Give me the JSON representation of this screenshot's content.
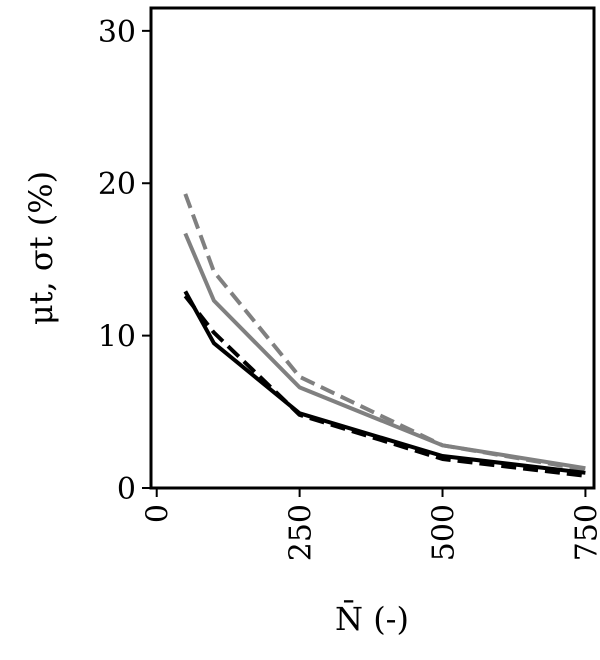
{
  "chart_data": {
    "type": "line",
    "title": "",
    "xlabel": "N̄ (-)",
    "ylabel": "μt, σt (%)",
    "x_ticks": [
      0,
      250,
      500,
      750
    ],
    "y_ticks": [
      0,
      10,
      20,
      30
    ],
    "xlim": [
      -10,
      765
    ],
    "ylim": [
      0,
      31.5
    ],
    "grid": false,
    "legend": "none",
    "series": [
      {
        "color": "#808080",
        "dash": "solid",
        "x": [
          50,
          100,
          250,
          500,
          750
        ],
        "y": [
          16.7,
          12.3,
          6.6,
          2.8,
          1.3
        ]
      },
      {
        "color": "#808080",
        "dash": "dashed",
        "x": [
          50,
          100,
          250,
          500,
          750
        ],
        "y": [
          19.3,
          14.2,
          7.3,
          2.8,
          1.2
        ]
      },
      {
        "color": "#000000",
        "dash": "solid",
        "x": [
          50,
          100,
          250,
          500,
          750
        ],
        "y": [
          12.9,
          9.5,
          4.9,
          2.1,
          1.0
        ]
      },
      {
        "color": "#000000",
        "dash": "dashed",
        "x": [
          50,
          100,
          250,
          500,
          750
        ],
        "y": [
          12.6,
          10.2,
          4.8,
          1.9,
          0.8
        ]
      }
    ]
  }
}
